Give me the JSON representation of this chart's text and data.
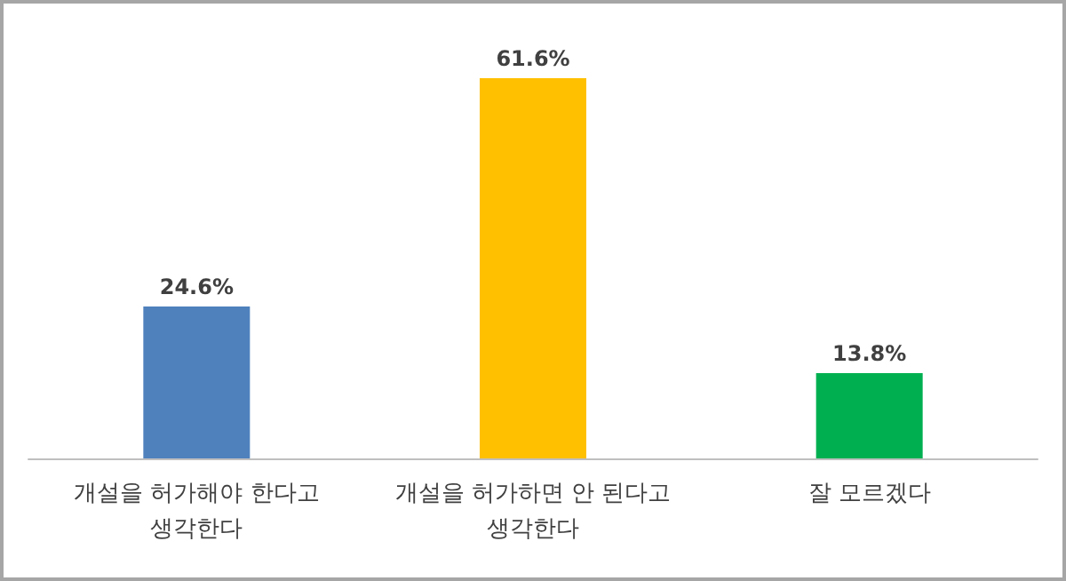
{
  "chart_data": {
    "type": "bar",
    "categories": [
      "개설을 허가해야 한다고\n생각한다",
      "개설을 허가하면 안 된다고\n생각한다",
      "잘 모르겠다"
    ],
    "values": [
      24.6,
      61.6,
      13.8
    ],
    "colors": [
      "#4f81bd",
      "#ffc000",
      "#00b050"
    ],
    "value_labels": [
      "24.6%",
      "61.6%",
      "13.8%"
    ]
  }
}
